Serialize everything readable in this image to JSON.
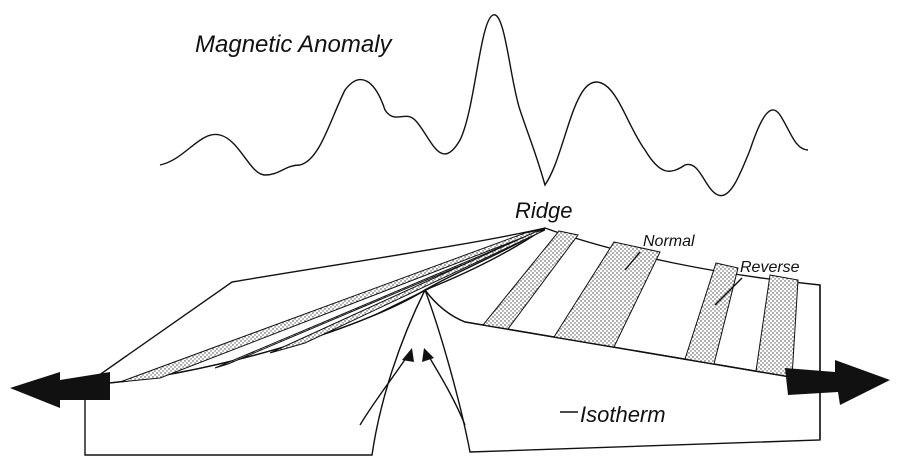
{
  "labels": {
    "title": "Magnetic Anomaly",
    "ridge": "Ridge",
    "normal": "Normal",
    "reverse": "Reverse",
    "isotherm": "Isotherm"
  }
}
